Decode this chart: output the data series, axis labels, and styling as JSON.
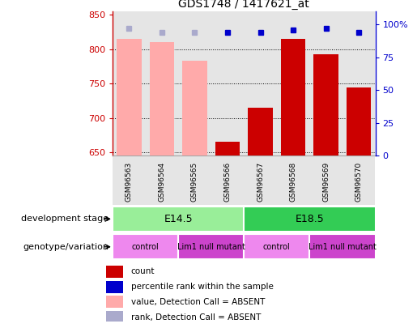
{
  "title": "GDS1748 / 1417621_at",
  "samples": [
    "GSM96563",
    "GSM96564",
    "GSM96565",
    "GSM96566",
    "GSM96567",
    "GSM96568",
    "GSM96569",
    "GSM96570"
  ],
  "bar_values": [
    815,
    810,
    783,
    665,
    715,
    815,
    793,
    745
  ],
  "bar_colors": [
    "#ffaaaa",
    "#ffaaaa",
    "#ffaaaa",
    "#cc0000",
    "#cc0000",
    "#cc0000",
    "#cc0000",
    "#cc0000"
  ],
  "rank_values": [
    830,
    825,
    825,
    825,
    825,
    828,
    830,
    825
  ],
  "rank_colors": [
    "#aaaacc",
    "#aaaacc",
    "#aaaacc",
    "#0000cc",
    "#0000cc",
    "#0000cc",
    "#0000cc",
    "#0000cc"
  ],
  "ylim_left": [
    645,
    855
  ],
  "yticks_left": [
    650,
    700,
    750,
    800,
    850
  ],
  "ylim_right": [
    0,
    110
  ],
  "yticks_right": [
    0,
    25,
    50,
    75,
    100
  ],
  "yticklabels_right": [
    "0",
    "25",
    "50",
    "75",
    "100%"
  ],
  "bar_width": 0.75,
  "development_stage_labels": [
    [
      "E14.5",
      0,
      3
    ],
    [
      "E18.5",
      4,
      7
    ]
  ],
  "dev_stage_colors": [
    "#99ee99",
    "#33cc55"
  ],
  "genotype_labels": [
    [
      "control",
      0,
      1
    ],
    [
      "Lim1 null mutant",
      2,
      3
    ],
    [
      "control",
      4,
      5
    ],
    [
      "Lim1 null mutant",
      6,
      7
    ]
  ],
  "genotype_colors": [
    "#ee88ee",
    "#cc44cc",
    "#ee88ee",
    "#cc44cc"
  ],
  "legend_items": [
    {
      "label": "count",
      "color": "#cc0000"
    },
    {
      "label": "percentile rank within the sample",
      "color": "#0000cc"
    },
    {
      "label": "value, Detection Call = ABSENT",
      "color": "#ffaaaa"
    },
    {
      "label": "rank, Detection Call = ABSENT",
      "color": "#aaaacc"
    }
  ],
  "left_axis_color": "#cc0000",
  "right_axis_color": "#0000cc",
  "baseline": 645,
  "row_label_dev": "development stage",
  "row_label_gen": "genotype/variation",
  "col_bg_color": "#cccccc"
}
